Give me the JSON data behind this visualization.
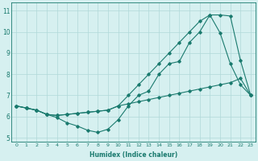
{
  "line1_x": [
    0,
    1,
    2,
    3,
    4,
    5,
    6,
    7,
    8,
    9,
    10,
    11,
    12,
    13,
    14,
    15,
    16,
    17,
    18,
    19,
    20,
    21,
    22,
    23
  ],
  "line1_y": [
    6.5,
    6.4,
    6.3,
    6.1,
    6.05,
    6.1,
    6.15,
    6.2,
    6.25,
    6.3,
    6.5,
    7.0,
    7.5,
    8.0,
    8.5,
    9.0,
    9.5,
    10.0,
    10.5,
    10.8,
    9.95,
    8.5,
    7.5,
    7.0
  ],
  "line2_x": [
    0,
    1,
    2,
    3,
    4,
    5,
    6,
    7,
    8,
    9,
    10,
    11,
    12,
    13,
    14,
    15,
    16,
    17,
    18,
    19,
    20,
    21,
    22,
    23
  ],
  "line2_y": [
    6.5,
    6.4,
    6.3,
    6.1,
    5.95,
    5.7,
    5.55,
    5.35,
    5.25,
    5.4,
    5.85,
    6.5,
    7.0,
    7.2,
    8.0,
    8.5,
    8.6,
    9.5,
    10.0,
    10.8,
    10.8,
    10.75,
    8.65,
    7.0
  ],
  "line3_x": [
    0,
    1,
    2,
    3,
    4,
    5,
    6,
    7,
    8,
    9,
    10,
    11,
    12,
    13,
    14,
    15,
    16,
    17,
    18,
    19,
    20,
    21,
    22,
    23
  ],
  "line3_y": [
    6.5,
    6.4,
    6.3,
    6.1,
    6.05,
    6.1,
    6.15,
    6.2,
    6.25,
    6.3,
    6.5,
    6.6,
    6.7,
    6.8,
    6.9,
    7.0,
    7.1,
    7.2,
    7.3,
    7.4,
    7.5,
    7.6,
    7.8,
    7.0
  ],
  "line_color": "#1a7a6e",
  "bg_color": "#d6f0f0",
  "grid_color": "#b0d8d8",
  "xlabel": "Humidex (Indice chaleur)",
  "ylabel_ticks": [
    5,
    6,
    7,
    8,
    9,
    10,
    11
  ],
  "xtick_labels": [
    "0",
    "1",
    "2",
    "3",
    "4",
    "5",
    "6",
    "7",
    "8",
    "9",
    "10",
    "11",
    "12",
    "13",
    "14",
    "15",
    "16",
    "17",
    "18",
    "19",
    "20",
    "21",
    "22",
    "23"
  ],
  "xlim": [
    -0.5,
    23.5
  ],
  "ylim": [
    4.8,
    11.4
  ],
  "marker": "D",
  "markersize": 1.8,
  "linewidth": 0.8
}
